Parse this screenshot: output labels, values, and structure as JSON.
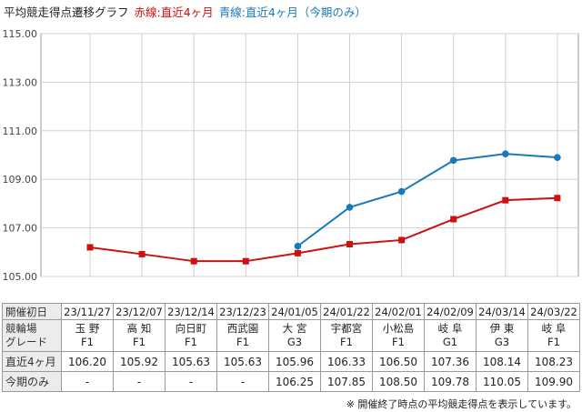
{
  "title": {
    "main": "平均競走得点遷移グラフ",
    "red_legend": "赤線:直近4ヶ月",
    "blue_legend": "青線:直近4ヶ月（今期のみ）"
  },
  "colors": {
    "red_series": "#cc1111",
    "blue_series": "#1a7ab8",
    "grid": "#d0d0d0"
  },
  "chart_data": {
    "type": "line",
    "title": "平均競走得点遷移グラフ",
    "categories": [
      "23/11/27",
      "23/12/07",
      "23/12/14",
      "23/12/23",
      "24/01/05",
      "24/01/22",
      "24/02/01",
      "24/02/09",
      "24/03/14",
      "24/03/22"
    ],
    "y_ticks": [
      "115.00",
      "113.00",
      "111.00",
      "109.00",
      "107.00",
      "105.00"
    ],
    "ylim": [
      105,
      115
    ],
    "grid": true,
    "series": [
      {
        "name": "直近4ヶ月",
        "color": "#cc1111",
        "marker": "square",
        "values": [
          106.2,
          105.92,
          105.63,
          105.63,
          105.96,
          106.33,
          106.5,
          107.36,
          108.14,
          108.23
        ]
      },
      {
        "name": "今期のみ",
        "color": "#1a7ab8",
        "marker": "circle",
        "values": [
          null,
          null,
          null,
          null,
          106.25,
          107.85,
          108.5,
          109.78,
          110.05,
          109.9
        ]
      }
    ]
  },
  "table": {
    "row_headers": {
      "date": "開催初日",
      "venue_line1": "競輪場",
      "venue_line2": "グレード",
      "recent": "直近4ヶ月",
      "season": "今期のみ"
    },
    "columns": [
      {
        "date": "23/11/27",
        "venue": "玉 野",
        "grade": "F1",
        "recent": "106.20",
        "season": "-"
      },
      {
        "date": "23/12/07",
        "venue": "高 知",
        "grade": "F1",
        "recent": "105.92",
        "season": "-"
      },
      {
        "date": "23/12/14",
        "venue": "向日町",
        "grade": "F1",
        "recent": "105.63",
        "season": "-"
      },
      {
        "date": "23/12/23",
        "venue": "西武園",
        "grade": "F1",
        "recent": "105.63",
        "season": "-"
      },
      {
        "date": "24/01/05",
        "venue": "大 宮",
        "grade": "G3",
        "recent": "105.96",
        "season": "106.25"
      },
      {
        "date": "24/01/22",
        "venue": "宇都宮",
        "grade": "F1",
        "recent": "106.33",
        "season": "107.85"
      },
      {
        "date": "24/02/01",
        "venue": "小松島",
        "grade": "F1",
        "recent": "106.50",
        "season": "108.50"
      },
      {
        "date": "24/02/09",
        "venue": "岐 阜",
        "grade": "G1",
        "recent": "107.36",
        "season": "109.78"
      },
      {
        "date": "24/03/14",
        "venue": "伊 東",
        "grade": "G3",
        "recent": "108.14",
        "season": "110.05"
      },
      {
        "date": "24/03/22",
        "venue": "岐 阜",
        "grade": "F1",
        "recent": "108.23",
        "season": "109.90"
      }
    ]
  },
  "note": "※ 開催終了時点の平均競走得点を表示しています。"
}
